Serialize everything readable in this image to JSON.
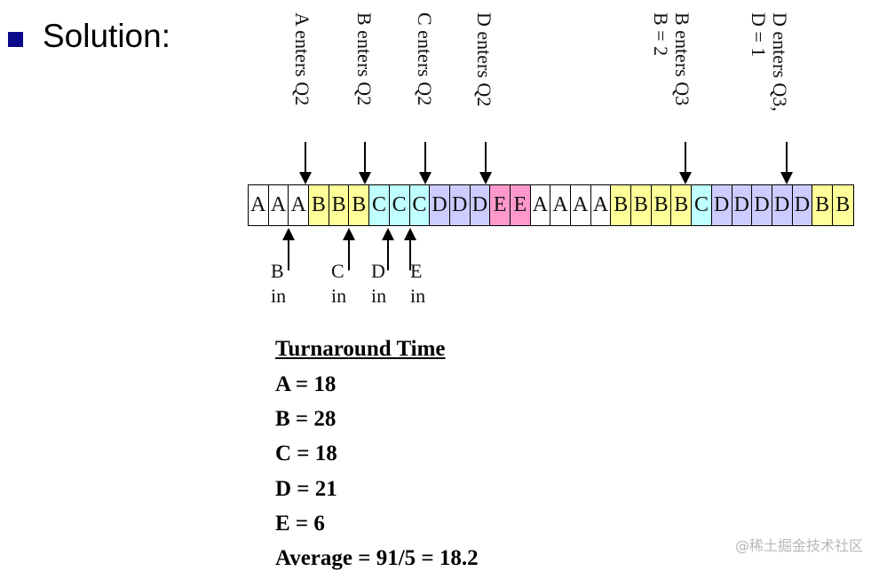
{
  "heading": "Solution:",
  "top_labels": [
    {
      "text": "A enters Q2"
    },
    {
      "text": "B enters Q2"
    },
    {
      "text": "C enters Q2"
    },
    {
      "text": "D enters Q2"
    },
    {
      "text": "B enters Q3\nB = 2"
    },
    {
      "text": "D enters Q3,\nD = 1"
    }
  ],
  "timeline": [
    "A",
    "A",
    "A",
    "B",
    "B",
    "B",
    "C",
    "C",
    "C",
    "D",
    "D",
    "D",
    "E",
    "E",
    "A",
    "A",
    "A",
    "A",
    "B",
    "B",
    "B",
    "B",
    "C",
    "D",
    "D",
    "D",
    "D",
    "D",
    "B",
    "B"
  ],
  "bottom_labels": [
    {
      "text": "B\nin"
    },
    {
      "text": "C\nin"
    },
    {
      "text": "D\nin"
    },
    {
      "text": "E\nin"
    }
  ],
  "turnaround": {
    "heading": "Turnaround Time",
    "lines": [
      "A = 18",
      "B = 28",
      "C = 18",
      "D = 21",
      "E = 6",
      "Average = 91/5 = 18.2"
    ]
  },
  "colors": {
    "A": "#ffffff",
    "B": "#ffff99",
    "C": "#bfffff",
    "D": "#ccccff",
    "E": "#ff99cc"
  },
  "watermark": "@稀土掘金技术社区"
}
